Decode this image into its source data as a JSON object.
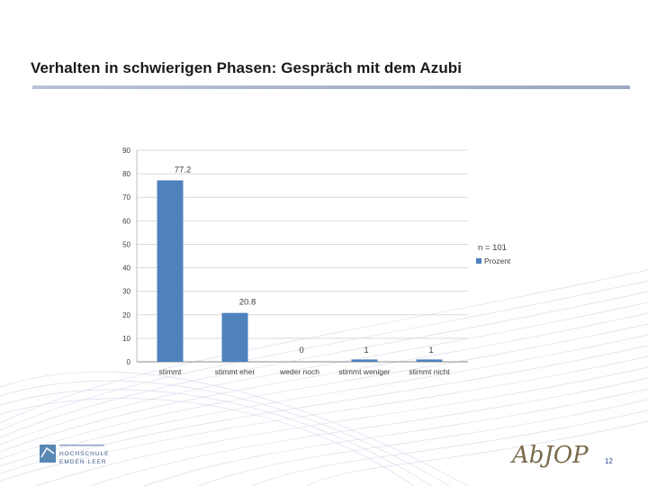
{
  "slide": {
    "title": "Verhalten in schwierigen Phasen: Gespräch mit dem Azubi",
    "page_number": "12",
    "logo_right_text": "AbJOP",
    "logo_left_line1": "HOCHSCHULE",
    "logo_left_line2": "EMDEN·LEER"
  },
  "chart_data": {
    "type": "bar",
    "categories": [
      "stimmt",
      "stimmt eher",
      "weder noch",
      "stimmt weniger",
      "stimmt nicht"
    ],
    "series": [
      {
        "name": "Prozent",
        "values": [
          77.2,
          20.8,
          0,
          1,
          1
        ]
      }
    ],
    "data_labels": [
      "77.2",
      "20.8",
      "0",
      "1",
      "1"
    ],
    "annotation": "n = 101",
    "ylim": [
      0,
      90
    ],
    "yticks": [
      0,
      10,
      20,
      30,
      40,
      50,
      60,
      70,
      80,
      90
    ],
    "grid": true,
    "legend_position": "right",
    "colors": {
      "bar": "#4f81bd",
      "grid": "#d9d9d9"
    }
  }
}
